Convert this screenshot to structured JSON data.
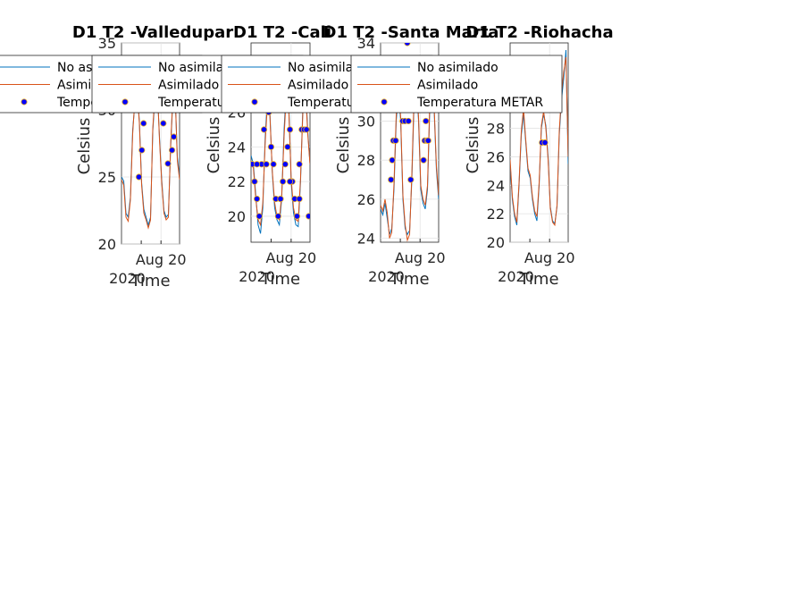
{
  "chart_data": [
    {
      "type": "line",
      "title": "D1 T2  -Valledupar",
      "xlabel": "Time",
      "ylabel": "Celsius",
      "x_tick_labels": [
        "Aug 20",
        "2020"
      ],
      "ylim": [
        20,
        35
      ],
      "yticks": [
        20,
        25,
        30,
        35
      ],
      "grid": true,
      "legend_position": "top-left",
      "series": [
        {
          "name": "No asimilado",
          "color": "#0072bd",
          "values": [
            25.0,
            24.7,
            22.3,
            22.0,
            23.5,
            28.5,
            30.5,
            31.3,
            29.2,
            24.6,
            22.6,
            22.0,
            21.4,
            22.0,
            28.4,
            31.0,
            31.6,
            28.0,
            24.8,
            22.5,
            22.0,
            22.2,
            27.2,
            30.8,
            31.2,
            26.5,
            25.0
          ]
        },
        {
          "name": "Asimilado",
          "color": "#d95319",
          "values": [
            24.8,
            24.4,
            22.0,
            21.7,
            23.3,
            28.2,
            30.8,
            31.5,
            29.0,
            24.4,
            22.3,
            21.8,
            21.2,
            21.8,
            28.6,
            31.3,
            31.9,
            27.8,
            24.6,
            22.3,
            21.8,
            22.0,
            27.4,
            31.0,
            31.4,
            26.2,
            24.8
          ]
        },
        {
          "name": "Temperatura METAR",
          "color": "#0000ff",
          "marker_edge": "#edb120",
          "x": [
            0.3,
            0.35,
            0.38,
            0.52,
            0.55,
            0.72,
            0.8,
            0.87,
            0.9
          ],
          "values": [
            25,
            27,
            29,
            31,
            31,
            29,
            26,
            27,
            28
          ]
        }
      ]
    },
    {
      "type": "line",
      "title": "D1 T2  -Cali",
      "xlabel": "Time",
      "ylabel": "Celsius",
      "x_tick_labels": [
        "Aug 20",
        "2020"
      ],
      "ylim": [
        18.5,
        30
      ],
      "yticks": [
        20,
        22,
        24,
        26
      ],
      "grid": true,
      "legend_position": "top-left",
      "series": [
        {
          "name": "No asimilado",
          "color": "#0072bd",
          "values": [
            23.5,
            23.0,
            21.2,
            19.5,
            19.0,
            20.5,
            24.5,
            27.0,
            26.0,
            22.5,
            20.5,
            19.8,
            19.5,
            21.0,
            25.0,
            27.5,
            26.5,
            22.0,
            20.2,
            19.5,
            19.4,
            22.0,
            26.5,
            28.0,
            25.0,
            23.0
          ]
        },
        {
          "name": "Asimilado",
          "color": "#d95319",
          "values": [
            23.2,
            22.8,
            21.0,
            19.8,
            19.5,
            20.8,
            24.2,
            26.6,
            25.8,
            22.6,
            20.8,
            20.0,
            19.8,
            21.2,
            24.6,
            27.1,
            26.2,
            22.2,
            20.5,
            19.8,
            19.7,
            22.2,
            26.1,
            27.6,
            24.8,
            23.0
          ]
        },
        {
          "name": "Temperatura METAR",
          "color": "#0000ff",
          "marker_edge": "#edb120",
          "x": [
            0.02,
            0.06,
            0.1,
            0.14,
            0.18,
            0.22,
            0.3,
            0.34,
            0.38,
            0.42,
            0.46,
            0.5,
            0.54,
            0.58,
            0.62,
            0.66,
            0.7,
            0.74,
            0.78,
            0.82,
            0.86,
            0.9,
            0.94,
            0.98,
            0.1,
            0.26,
            0.5,
            0.66,
            0.82
          ],
          "values": [
            23,
            22,
            21,
            20,
            23,
            25,
            26,
            24,
            23,
            21,
            20,
            21,
            22,
            23,
            24,
            25,
            22,
            21,
            20,
            23,
            25,
            25,
            25,
            20,
            23,
            23,
            21,
            22,
            21
          ]
        }
      ]
    },
    {
      "type": "line",
      "title": "D1 T2  -Santa Marta",
      "xlabel": "Time",
      "ylabel": "Celsius",
      "x_tick_labels": [
        "Aug 20",
        "2020"
      ],
      "ylim": [
        23.8,
        34
      ],
      "yticks": [
        24,
        26,
        28,
        30,
        32,
        34
      ],
      "grid": true,
      "legend_position": "top-left",
      "series": [
        {
          "name": "No asimilado",
          "color": "#0072bd",
          "values": [
            25.5,
            25.2,
            25.8,
            25.0,
            24.2,
            24.5,
            26.5,
            30.0,
            31.5,
            30.0,
            26.0,
            24.5,
            24.2,
            24.4,
            27.0,
            31.0,
            32.0,
            30.0,
            26.5,
            25.8,
            25.5,
            26.5,
            30.5,
            31.5,
            30.5,
            27.5,
            26.0
          ]
        },
        {
          "name": "Asimilado",
          "color": "#d95319",
          "values": [
            25.7,
            25.4,
            26.0,
            25.3,
            24.0,
            24.3,
            26.8,
            30.3,
            31.8,
            30.2,
            26.2,
            24.7,
            23.9,
            24.2,
            27.3,
            31.3,
            32.3,
            30.2,
            26.7,
            26.0,
            25.7,
            26.7,
            30.8,
            31.8,
            30.7,
            27.7,
            26.2
          ]
        },
        {
          "name": "Temperatura METAR",
          "color": "#0000ff",
          "marker_edge": "#edb120",
          "x": [
            0.18,
            0.2,
            0.22,
            0.26,
            0.38,
            0.42,
            0.46,
            0.48,
            0.52,
            0.74,
            0.76,
            0.78,
            0.8,
            0.82
          ],
          "values": [
            27,
            28,
            29,
            29,
            30,
            30,
            34,
            30,
            27,
            28,
            29,
            30,
            29,
            29
          ]
        }
      ]
    },
    {
      "type": "line",
      "title": "D1 T2  -Riohacha",
      "xlabel": "Time",
      "ylabel": "Celsius",
      "x_tick_labels": [
        "Aug 20",
        "2020"
      ],
      "ylim": [
        20,
        34
      ],
      "yticks": [
        20,
        22,
        24,
        26,
        28
      ],
      "grid": true,
      "legend_position": "top-left",
      "series": [
        {
          "name": "No asimilado",
          "color": "#0072bd",
          "values": [
            25.5,
            23.0,
            21.8,
            21.2,
            24.0,
            27.5,
            29.0,
            27.0,
            25.0,
            24.5,
            23.0,
            22.0,
            21.5,
            24.0,
            28.0,
            29.0,
            28.2,
            26.0,
            22.5,
            21.5,
            21.3,
            22.5,
            27.5,
            30.0,
            31.5,
            33.5,
            25.5
          ]
        },
        {
          "name": "Asimilado",
          "color": "#d95319",
          "values": [
            25.8,
            23.2,
            22.0,
            21.4,
            24.2,
            27.8,
            29.4,
            27.2,
            25.2,
            24.7,
            23.2,
            22.2,
            21.8,
            24.2,
            28.2,
            29.2,
            28.0,
            25.8,
            22.4,
            21.4,
            21.2,
            22.6,
            27.8,
            30.4,
            32.0,
            33.0,
            26.0
          ]
        },
        {
          "name": "Temperatura METAR",
          "color": "#0000ff",
          "marker_edge": "#edb120",
          "x": [
            0.55,
            0.6
          ],
          "values": [
            27,
            27
          ]
        }
      ]
    }
  ]
}
